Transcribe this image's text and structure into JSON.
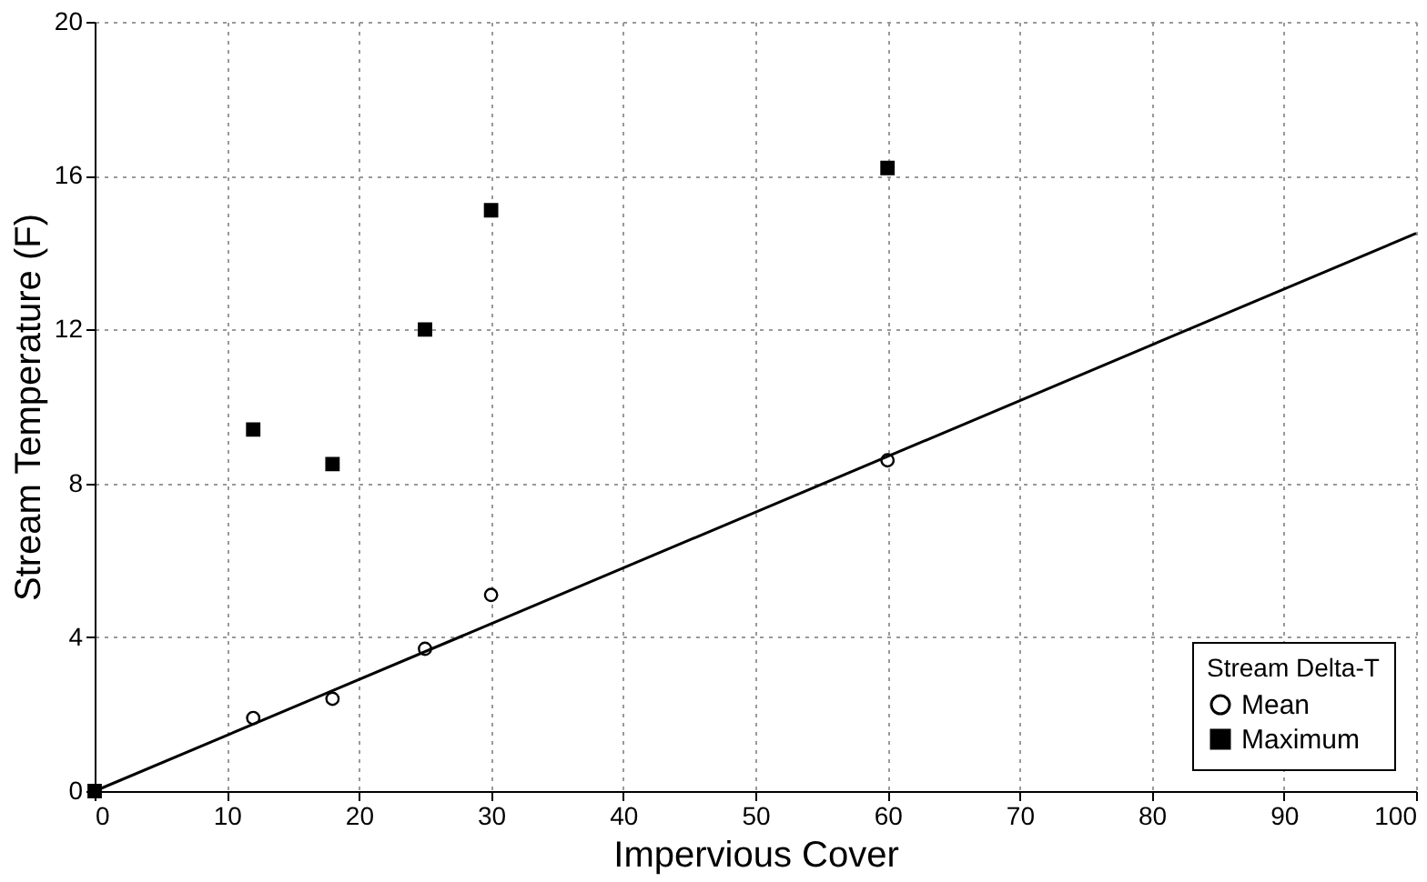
{
  "chart_data": {
    "type": "scatter",
    "xlabel": "Impervious Cover",
    "ylabel": "Stream Temperature (F)",
    "legend_title": "Stream Delta-T",
    "legend": "bottom right",
    "grid": true,
    "xlim": [
      0,
      100
    ],
    "xticks": [
      0,
      10,
      20,
      30,
      40,
      50,
      60,
      70,
      80,
      90,
      100
    ],
    "ylim": [
      0,
      20
    ],
    "yticks": [
      0,
      4,
      8,
      12,
      16,
      20
    ],
    "x": [
      0,
      12,
      18,
      25,
      30,
      60
    ],
    "series": [
      {
        "name": "Mean",
        "color": "#000000",
        "marker": "circle",
        "values": [
          null,
          1.9,
          2.4,
          3.7,
          5.1,
          8.6
        ]
      },
      {
        "name": "Maximum",
        "color": "#000000",
        "marker": "square",
        "values": [
          0,
          9.4,
          8.5,
          12.0,
          15.1,
          16.2
        ]
      },
      {
        "type": "line",
        "color": "#000000",
        "x": [
          0,
          100
        ],
        "values": [
          0,
          14.5
        ]
      }
    ]
  }
}
